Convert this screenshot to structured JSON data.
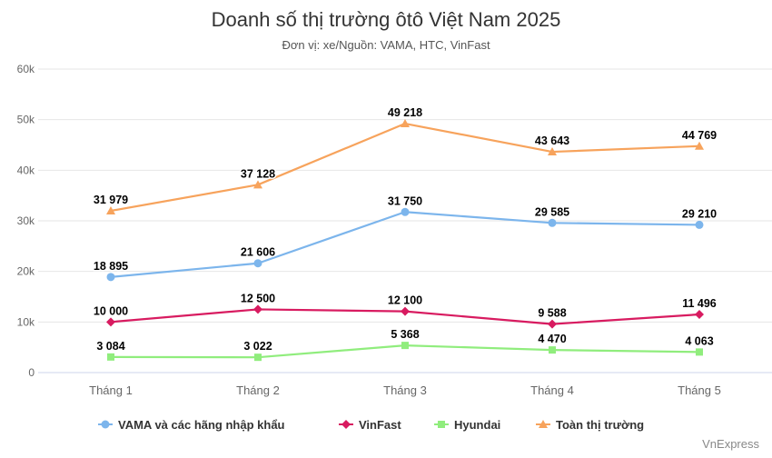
{
  "title": "Doanh số thị trường ôtô Việt Nam 2025",
  "subtitle": "Đơn vị: xe/Nguồn: VAMA, HTC, VinFast",
  "credit": "VnExpress",
  "chart_data": {
    "type": "line",
    "title": "Doanh số thị trường ôtô Việt Nam 2025",
    "subtitle": "Đơn vị: xe/Nguồn: VAMA, HTC, VinFast",
    "categories": [
      "Tháng 1",
      "Tháng 2",
      "Tháng 3",
      "Tháng 4",
      "Tháng 5"
    ],
    "ylim": [
      0,
      60000
    ],
    "yticks": [
      0,
      10000,
      20000,
      30000,
      40000,
      50000,
      60000
    ],
    "ytick_labels": [
      "0",
      "10k",
      "20k",
      "30k",
      "40k",
      "50k",
      "60k"
    ],
    "grid": true,
    "legend_position": "bottom",
    "series": [
      {
        "name": "VAMA và các hãng nhập khẩu",
        "values": [
          18895,
          21606,
          31750,
          29585,
          29210
        ],
        "labels": [
          "18 895",
          "21 606",
          "31 750",
          "29 585",
          "29 210"
        ],
        "color": "#7cb5ec",
        "marker": "circle"
      },
      {
        "name": "VinFast",
        "values": [
          10000,
          12500,
          12100,
          9588,
          11496
        ],
        "labels": [
          "10 000",
          "12 500",
          "12 100",
          "9 588",
          "11 496"
        ],
        "color": "#d81b60",
        "marker": "diamond"
      },
      {
        "name": "Hyundai",
        "values": [
          3084,
          3022,
          5368,
          4470,
          4063
        ],
        "labels": [
          "3 084",
          "3 022",
          "5 368",
          "4 470",
          "4 063"
        ],
        "color": "#90ed7d",
        "marker": "square"
      },
      {
        "name": "Toàn thị trường",
        "values": [
          31979,
          37128,
          49218,
          43643,
          44769
        ],
        "labels": [
          "31 979",
          "37 128",
          "49 218",
          "43 643",
          "44 769"
        ],
        "color": "#f7a35c",
        "marker": "triangle"
      }
    ]
  }
}
